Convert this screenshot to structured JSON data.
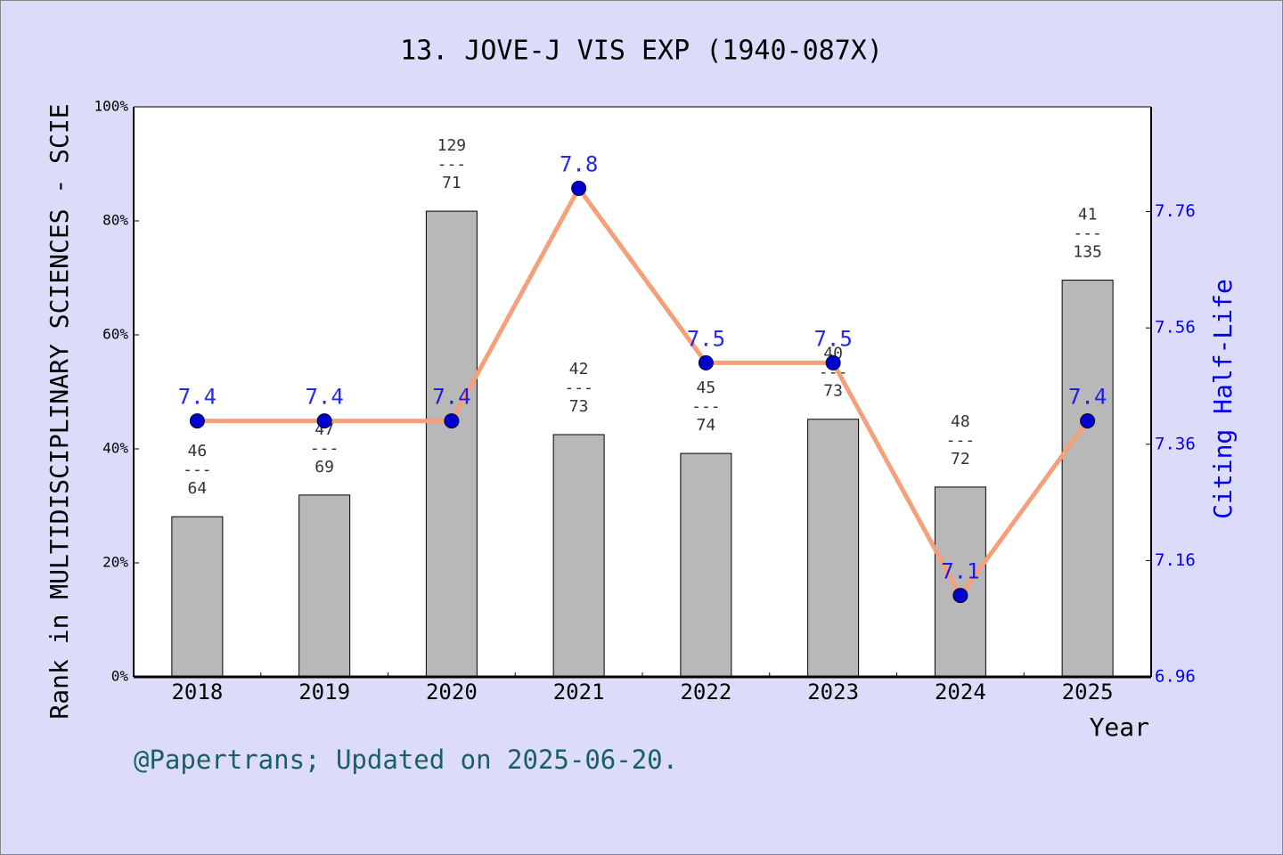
{
  "chart_data": {
    "type": "bar",
    "title": "13. JOVE-J VIS EXP (1940-087X)",
    "ylabel": "Rank in MULTIDISCIPLINARY SCIENCES - SCIE",
    "y2label": "Citing Half-Life",
    "xlabel": "Year",
    "footer": "@Papertrans; Updated on 2025-06-20.",
    "categories": [
      "2018",
      "2019",
      "2020",
      "2021",
      "2022",
      "2023",
      "2024",
      "2025"
    ],
    "ylim": [
      0,
      100
    ],
    "yticks": [
      {
        "value": 0,
        "label": "0%"
      },
      {
        "value": 20,
        "label": "20%"
      },
      {
        "value": 40,
        "label": "40%"
      },
      {
        "value": 60,
        "label": "60%"
      },
      {
        "value": 80,
        "label": "80%"
      },
      {
        "value": 100,
        "label": "100%"
      }
    ],
    "y2lim": [
      6.96,
      7.94
    ],
    "y2ticks": [
      6.96,
      7.16,
      7.36,
      7.56,
      7.76
    ],
    "series": [
      {
        "type": "bar",
        "color": "#b8b8b8",
        "values": [
          28.1,
          31.9,
          81.7,
          42.5,
          39.2,
          45.2,
          33.3,
          69.6
        ],
        "bar_labels": [
          [
            "46",
            "---",
            "64"
          ],
          [
            "47",
            "---",
            "69"
          ],
          [
            "129",
            "---",
            "71"
          ],
          [
            "42",
            "---",
            "73"
          ],
          [
            "45",
            "---",
            "74"
          ],
          [
            "40",
            "---",
            "73"
          ],
          [
            "48",
            "---",
            "72"
          ],
          [
            "41",
            "---",
            "135"
          ]
        ]
      },
      {
        "type": "line",
        "axis": "y2",
        "color": "#f4a07a",
        "marker_color": "#0000cc",
        "values": [
          7.4,
          7.4,
          7.4,
          7.8,
          7.5,
          7.5,
          7.1,
          7.4
        ]
      }
    ]
  }
}
